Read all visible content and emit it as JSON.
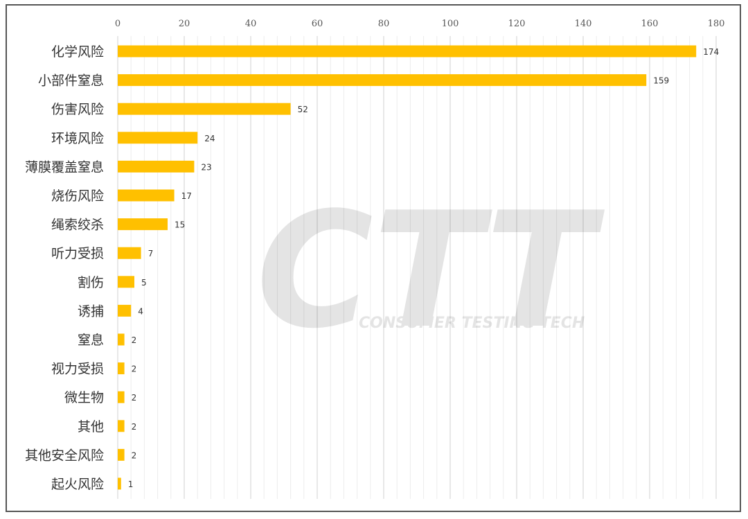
{
  "watermark": {
    "logo_text": "CTT",
    "tagline": "CONSUMER TESTING TECH"
  },
  "colors": {
    "bar": "#FFC000",
    "grid_major": "#d0d0d0",
    "grid_minor": "#ececec",
    "frame": "#555555"
  },
  "chart_data": {
    "type": "bar",
    "orientation": "horizontal",
    "categories": [
      "化学风险",
      "小部件窒息",
      "伤害风险",
      "环境风险",
      "薄膜覆盖窒息",
      "烧伤风险",
      "绳索绞杀",
      "听力受损",
      "割伤",
      "诱捕",
      "窒息",
      "视力受损",
      "微生物",
      "其他",
      "其他安全风险",
      "起火风险"
    ],
    "values": [
      174,
      159,
      52,
      24,
      23,
      17,
      15,
      7,
      5,
      4,
      2,
      2,
      2,
      2,
      2,
      1
    ],
    "value_labels": [
      "174",
      "159",
      "52",
      "24",
      "23",
      "17",
      "15",
      "7",
      "5",
      "4",
      "2",
      "2",
      "2",
      "2",
      "2",
      "1"
    ],
    "xlim": [
      0,
      180
    ],
    "x_ticks": [
      "0",
      "20",
      "40",
      "60",
      "80",
      "100",
      "120",
      "140",
      "160",
      "180"
    ],
    "x_axis_position": "top",
    "grid": true,
    "title": "",
    "xlabel": "",
    "ylabel": ""
  }
}
